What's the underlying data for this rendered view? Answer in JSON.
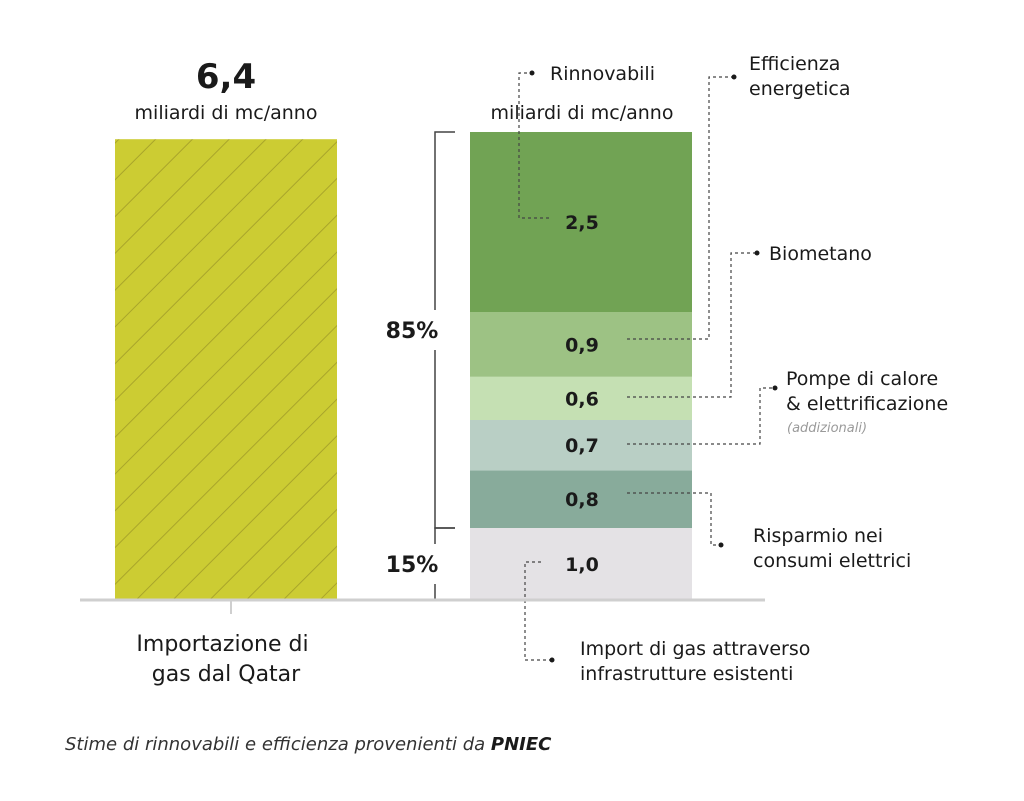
{
  "chart_data": {
    "type": "bar",
    "categories": [
      "Importazione di gas dal Qatar",
      ""
    ],
    "category_label_lines": [
      "Importazione di",
      "gas dal Qatar"
    ],
    "left_bar": {
      "value": 6.4,
      "value_label": "6,4",
      "unit": "miliardi di mc/anno",
      "color": "#cccc33",
      "pattern": "diagonal-hatch"
    },
    "right_bar": {
      "unit": "miliardi di mc/anno",
      "segments": [
        {
          "name": "Import di gas attraverso infrastrutture esistenti",
          "lines": [
            "Import di gas attraverso",
            "infrastrutture esistenti"
          ],
          "value": 1.0,
          "label": "1,0",
          "color": "#e4e2e5"
        },
        {
          "name": "Risparmio nei consumi elettrici",
          "lines": [
            "Risparmio nei",
            "consumi elettrici"
          ],
          "value": 0.8,
          "label": "0,8",
          "color": "#88ab9b"
        },
        {
          "name": "Pompe di calore & elettrificazione",
          "lines": [
            "Pompe di calore",
            "& elettrificazione"
          ],
          "note": "(addizionali)",
          "value": 0.7,
          "label": "0,7",
          "color": "#b9cfc5"
        },
        {
          "name": "Biometano",
          "lines": [
            "Biometano"
          ],
          "value": 0.6,
          "label": "0,6",
          "color": "#c5e0b3"
        },
        {
          "name": "Efficienza energetica",
          "lines": [
            "Efficienza",
            "energetica"
          ],
          "value": 0.9,
          "label": "0,9",
          "color": "#9dc284"
        },
        {
          "name": "Rinnovabili",
          "lines": [
            "Rinnovabili"
          ],
          "value": 2.5,
          "label": "2,5",
          "color": "#71a354"
        }
      ]
    },
    "brackets": [
      {
        "label": "85%",
        "from": 1.0,
        "to": 6.5
      },
      {
        "label": "15%",
        "from": 0,
        "to": 1.0
      }
    ],
    "ylim": [
      0,
      6.5
    ],
    "grid": false,
    "footnote_prefix": "Stime di rinnovabili e efficienza provenienti da ",
    "footnote_bold": "PNIEC"
  }
}
